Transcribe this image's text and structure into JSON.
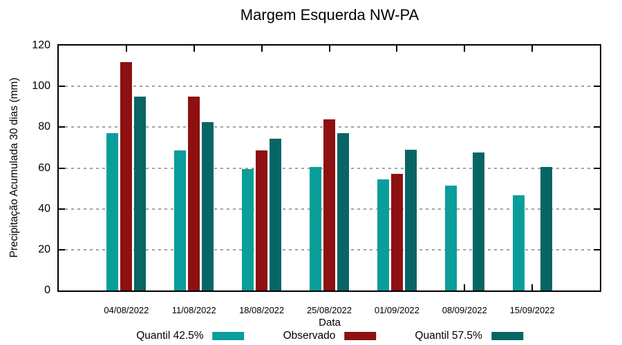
{
  "chart_data": {
    "type": "bar",
    "title": "Margem Esquerda NW-PA",
    "xlabel": "Data",
    "ylabel": "Precipitação Acumulada 30 dias (mm)",
    "categories": [
      "04/08/2022",
      "11/08/2022",
      "18/08/2022",
      "25/08/2022",
      "01/09/2022",
      "08/09/2022",
      "15/09/2022"
    ],
    "series": [
      {
        "name": "Quantil 42.5%",
        "color": "#0a9e9a",
        "values": [
          77,
          68.5,
          59.5,
          60.5,
          54.5,
          51.5,
          46.5
        ]
      },
      {
        "name": "Observado",
        "color": "#8e1010",
        "values": [
          112,
          95,
          68.5,
          84,
          57,
          null,
          null
        ]
      },
      {
        "name": "Quantil 57.5%",
        "color": "#076665",
        "values": [
          95,
          82.5,
          74.5,
          77,
          69,
          67.5,
          60.5
        ]
      }
    ],
    "ylim": [
      0,
      120
    ],
    "yticks": [
      0,
      20,
      40,
      60,
      80,
      100,
      120
    ],
    "grid": true,
    "legend_position": "bottom"
  },
  "colors": {
    "background": "#ffffff",
    "axis": "#000000",
    "grid": "#a3a3a3",
    "text": "#000000"
  }
}
